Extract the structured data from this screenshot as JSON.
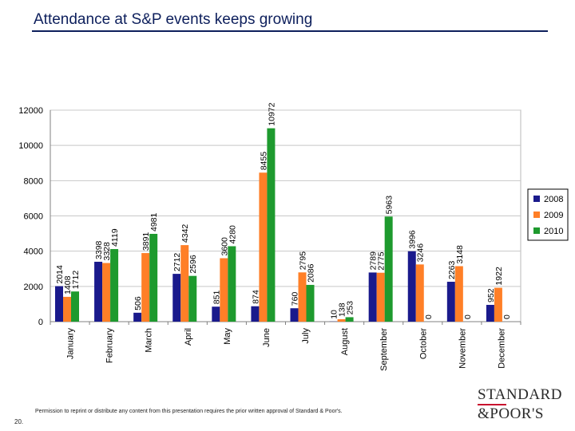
{
  "header": {
    "title": "Attendance at S&P events keeps growing"
  },
  "chart_data": {
    "type": "bar",
    "title": "",
    "xlabel": "",
    "ylabel": "",
    "ylim": [
      0,
      12000
    ],
    "yticks": [
      0,
      2000,
      4000,
      6000,
      8000,
      10000,
      12000
    ],
    "categories": [
      "January",
      "February",
      "March",
      "April",
      "May",
      "June",
      "July",
      "August",
      "September",
      "October",
      "November",
      "December"
    ],
    "series": [
      {
        "name": "2008",
        "color": "#1a1a8c",
        "values": [
          2014,
          3398,
          506,
          2712,
          851,
          874,
          760,
          10,
          2789,
          3996,
          2263,
          952
        ]
      },
      {
        "name": "2009",
        "color": "#ff7f27",
        "values": [
          1408,
          3328,
          3891,
          4342,
          3600,
          8455,
          2795,
          138,
          2775,
          3246,
          3148,
          1922
        ]
      },
      {
        "name": "2010",
        "color": "#1e9a2e",
        "values": [
          1712,
          4119,
          4981,
          2596,
          4280,
          10972,
          2086,
          253,
          5963,
          0,
          0,
          0
        ]
      }
    ],
    "legend_position": "right",
    "grid": true
  },
  "footer": {
    "disclaimer": "Permission to reprint or distribute any content from this presentation requires the prior written approval of Standard & Poor's.",
    "page_number": "20.",
    "logo_line1": "STANDARD",
    "logo_line2": "&POOR'S"
  }
}
